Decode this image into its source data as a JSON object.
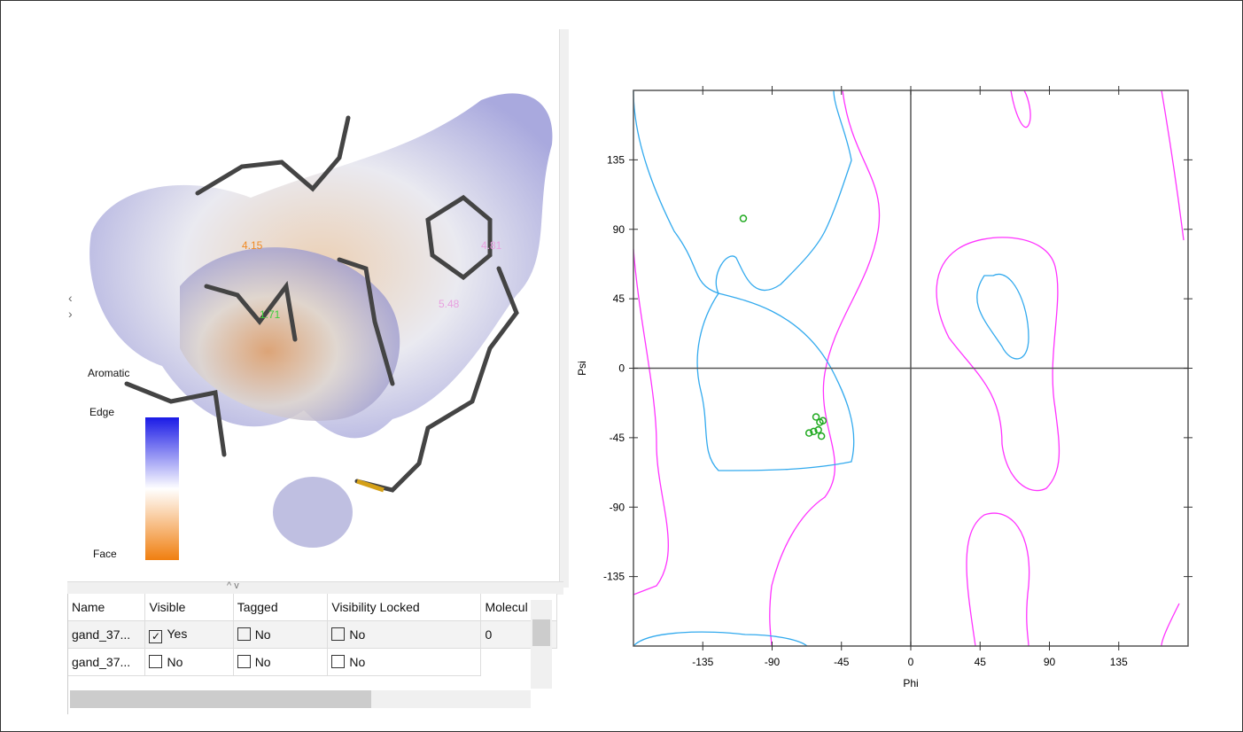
{
  "viewer": {
    "labels": [
      "4.15",
      "1.71",
      "4.81",
      "5.48"
    ],
    "legend": [
      "Aromatic",
      "Edge",
      "Face"
    ]
  },
  "table": {
    "columns": [
      "Name",
      "Visible",
      "Tagged",
      "Visibility Locked",
      "Molecul"
    ],
    "rows": [
      [
        {
          "text": "gand_37..."
        },
        {
          "text": "Yes",
          "checked": true
        },
        {
          "text": "No",
          "checked": false
        },
        {
          "text": "No",
          "checked": false
        },
        {
          "text": "0"
        }
      ],
      [
        {
          "text": "gand_37..."
        },
        {
          "text": "No",
          "checked": false
        },
        {
          "text": "No",
          "checked": false
        },
        {
          "text": "No",
          "checked": false
        }
      ]
    ]
  },
  "chart_data": {
    "type": "scatter",
    "x_label": "Phi",
    "y_label": "Psi",
    "xlim": [
      -180,
      180
    ],
    "ylim": [
      -180,
      180
    ],
    "xticks": [
      -135,
      -90,
      -45,
      0,
      45,
      90,
      135
    ],
    "yticks": [
      -135,
      -90,
      -45,
      0,
      45,
      90,
      135
    ],
    "x": [
      -108.7,
      -61.5,
      -59,
      -66,
      -63,
      -60,
      -58,
      -57
    ],
    "series": [
      {
        "color": "#22aa22",
        "values": [
          97,
          -31.6,
          -35,
          -42,
          -41,
          -40,
          -44,
          -34
        ]
      }
    ]
  }
}
